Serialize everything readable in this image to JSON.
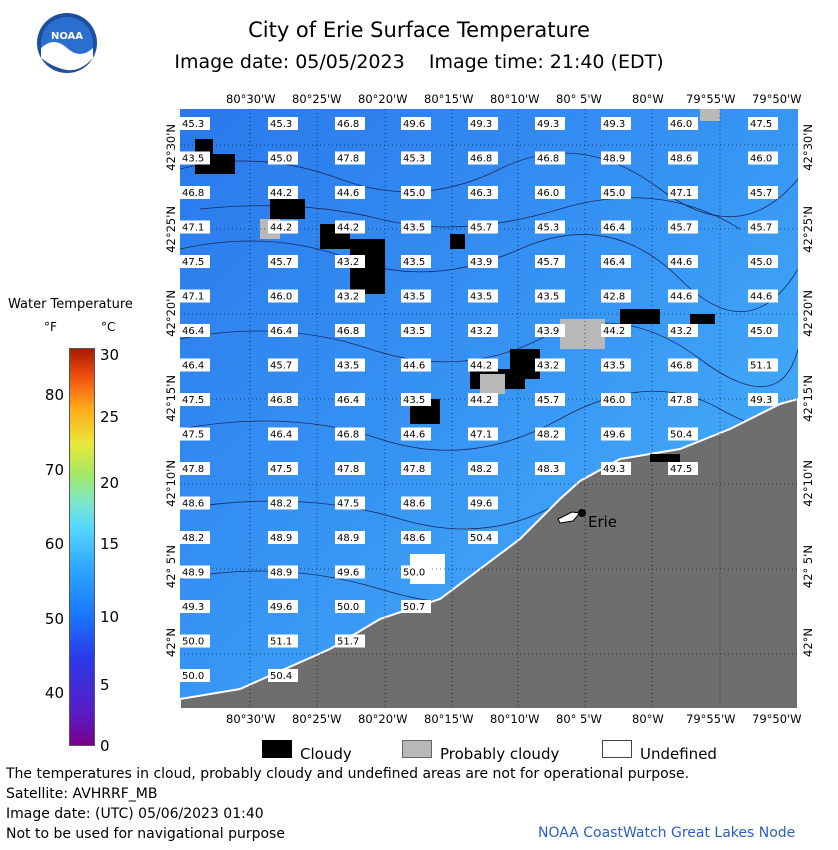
{
  "header": {
    "title": "City of Erie Surface Temperature",
    "subtitle": "Image date: 05/05/2023    Image time: 21:40 (EDT)",
    "logo_text": "NOAA"
  },
  "legend": {
    "title": "Water Temperature",
    "unit_f": "°F",
    "unit_c": "°C",
    "ticks_f": [
      "80",
      "70",
      "60",
      "50",
      "40"
    ],
    "ticks_c": [
      "30",
      "25",
      "20",
      "15",
      "10",
      "5",
      "0"
    ]
  },
  "map": {
    "lon_labels": [
      "80°30'W",
      "80°25'W",
      "80°20'W",
      "80°15'W",
      "80°10'W",
      "80° 5'W",
      "80°W",
      "79°55'W",
      "79°50'W"
    ],
    "lat_labels": [
      "42°30'N",
      "42°25'N",
      "42°20'N",
      "42°15'N",
      "42°10'N",
      "42° 5'N",
      "42°N"
    ],
    "place_label": "Erie",
    "temperature_rows": [
      [
        "45.3",
        "45.3",
        "46.8",
        "49.6",
        "49.3",
        "49.3",
        "49.3",
        "46.0",
        "47.5"
      ],
      [
        "43.5",
        "45.0",
        "47.8",
        "45.3",
        "46.8",
        "46.8",
        "48.9",
        "48.6",
        "46.0"
      ],
      [
        "46.8",
        "44.2",
        "44.6",
        "45.0",
        "46.3",
        "46.0",
        "45.0",
        "47.1",
        "45.7"
      ],
      [
        "47.1",
        "44.2",
        "44.2",
        "43.5",
        "45.7",
        "45.3",
        "46.4",
        "45.7",
        "45.7"
      ],
      [
        "47.5",
        "45.7",
        "43.2",
        "43.5",
        "43.9",
        "45.7",
        "46.4",
        "44.6",
        "45.0"
      ],
      [
        "47.1",
        "46.0",
        "43.2",
        "43.5",
        "43.5",
        "43.5",
        "42.8",
        "44.6",
        "44.6"
      ],
      [
        "46.4",
        "46.4",
        "46.8",
        "43.5",
        "43.2",
        "43.9",
        "44.2",
        "43.2",
        "45.0"
      ],
      [
        "46.4",
        "45.7",
        "43.5",
        "44.6",
        "44.2",
        "43.2",
        "43.5",
        "46.8",
        "51.1"
      ],
      [
        "47.5",
        "46.8",
        "46.4",
        "43.5",
        "44.2",
        "45.7",
        "46.0",
        "47.8",
        "49.3"
      ],
      [
        "47.5",
        "46.4",
        "46.8",
        "44.6",
        "47.1",
        "48.2",
        "49.6",
        "50.4",
        ""
      ],
      [
        "47.8",
        "47.5",
        "47.8",
        "47.8",
        "48.2",
        "48.3",
        "49.3",
        "47.5",
        ""
      ],
      [
        "48.6",
        "48.2",
        "47.5",
        "48.6",
        "49.6",
        "",
        "",
        "",
        ""
      ],
      [
        "48.2",
        "48.9",
        "48.9",
        "48.6",
        "50.4",
        "",
        "",
        "",
        ""
      ],
      [
        "48.9",
        "48.9",
        "49.6",
        "50.0",
        "",
        "",
        "",
        "",
        ""
      ],
      [
        "49.3",
        "49.6",
        "50.0",
        "50.7",
        "",
        "",
        "",
        "",
        ""
      ],
      [
        "50.0",
        "51.1",
        "51.7",
        "",
        "",
        "",
        "",
        "",
        ""
      ],
      [
        "50.0",
        "50.4",
        "",
        "",
        "",
        "",
        "",
        "",
        ""
      ]
    ]
  },
  "key": {
    "cloudy": "Cloudy",
    "probably_cloudy": "Probably cloudy",
    "undefined": "Undefined"
  },
  "footer": {
    "line1": "The temperatures in cloud, probably cloudy and undefined areas are not for operational purpose.",
    "line2": "Satellite: AVHRRF_MB",
    "line3": "Image date: (UTC) 05/06/2023  01:40",
    "line4": "Not to be used for navigational purpose",
    "credit": "NOAA CoastWatch Great Lakes Node"
  },
  "colors": {
    "water": "#2f86f0",
    "land": "#6e6e6e",
    "cloud": "#000000",
    "probably_cloudy": "#b8b8b8",
    "credit": "#2a5fbf"
  }
}
